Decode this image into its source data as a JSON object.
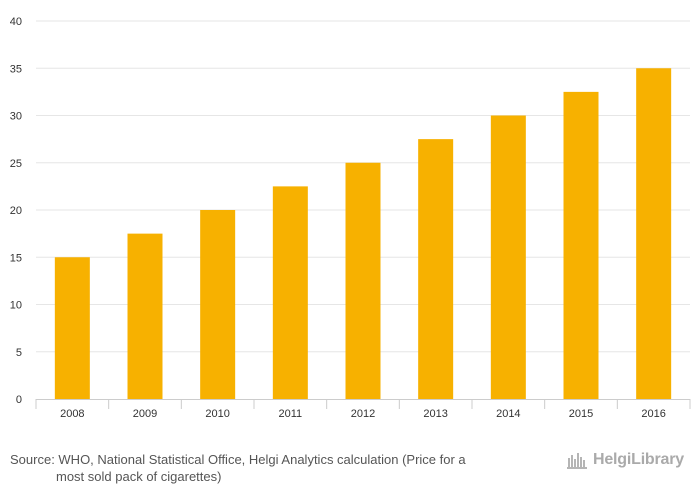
{
  "chart_data": {
    "type": "bar",
    "categories": [
      "2008",
      "2009",
      "2010",
      "2011",
      "2012",
      "2013",
      "2014",
      "2015",
      "2016"
    ],
    "values": [
      15,
      17.5,
      20,
      22.5,
      25,
      27.5,
      30,
      32.5,
      35
    ],
    "ylim": [
      0,
      40
    ],
    "yticks": [
      0,
      5,
      10,
      15,
      20,
      25,
      30,
      35,
      40
    ],
    "grid": true,
    "bar_color": "#f7b100",
    "title": "",
    "xlabel": "",
    "ylabel": ""
  },
  "source": {
    "line1": "Source: WHO, National Statistical Office, Helgi Analytics calculation (Price for a",
    "line2": "most sold pack of cigarettes)"
  },
  "logo": {
    "text": "HelgiLibrary",
    "icon": "library-skyline-icon"
  }
}
